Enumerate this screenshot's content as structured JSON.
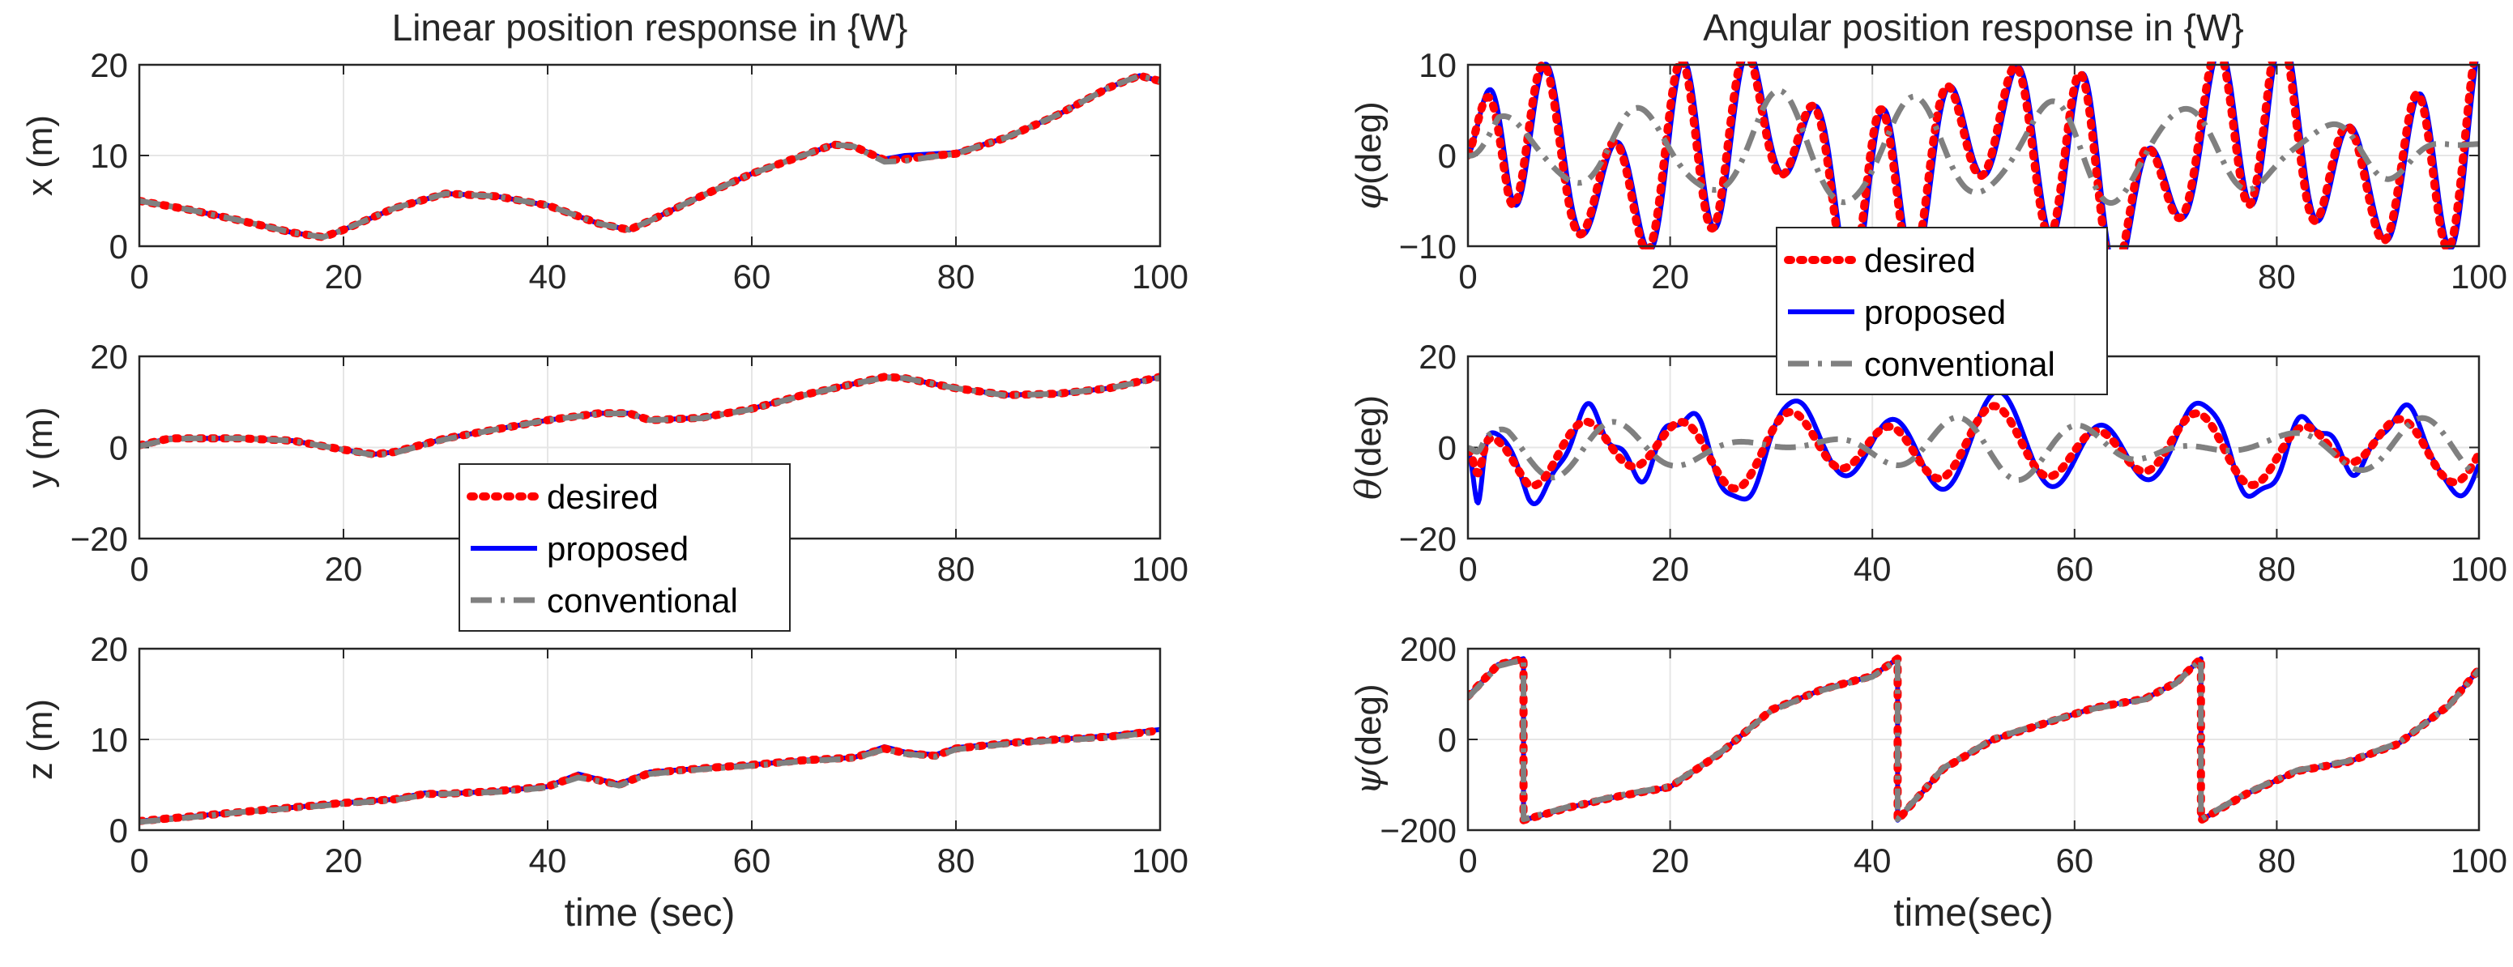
{
  "chart_data": [
    {
      "type": "line",
      "id": "x-plot",
      "title": "Linear position response in {W}",
      "ylabel": "x (m)",
      "xlabel": "",
      "xlim": [
        0,
        100
      ],
      "ylim": [
        0,
        20
      ],
      "xticks": [
        "0",
        "20",
        "40",
        "60",
        "80",
        "100"
      ],
      "yticks": [
        "0",
        "10",
        "20"
      ],
      "x": [
        0,
        5,
        10,
        15,
        18,
        20,
        25,
        30,
        35,
        40,
        45,
        48,
        50,
        55,
        60,
        65,
        68,
        70,
        73,
        75,
        78,
        80,
        85,
        90,
        95,
        98,
        100
      ],
      "series": [
        {
          "name": "desired",
          "values": [
            5,
            4,
            2.8,
            1.5,
            1,
            1.8,
            4.2,
            5.8,
            5.5,
            4.5,
            2.5,
            1.8,
            2.8,
            5.5,
            8,
            10,
            11.2,
            11,
            9.5,
            9.6,
            10,
            10.2,
            12,
            14.5,
            17.5,
            18.8,
            18.2
          ]
        },
        {
          "name": "proposed",
          "values": [
            5,
            4,
            2.8,
            1.5,
            1,
            1.8,
            4.2,
            5.8,
            5.5,
            4.5,
            2.5,
            1.8,
            2.8,
            5.5,
            8,
            10,
            11.2,
            11,
            9.6,
            10,
            10.2,
            10.3,
            12,
            14.5,
            17.5,
            18.8,
            18.2
          ]
        },
        {
          "name": "conventional",
          "values": [
            5,
            4,
            2.8,
            1.5,
            1,
            1.8,
            4.2,
            5.8,
            5.5,
            4.5,
            2.5,
            1.8,
            2.8,
            5.5,
            8,
            10,
            11.2,
            11,
            9.3,
            9.4,
            9.9,
            10.2,
            12,
            14.5,
            17.5,
            18.8,
            18.2
          ]
        }
      ]
    },
    {
      "type": "line",
      "id": "y-plot",
      "ylabel": "y (m)",
      "xlabel": "",
      "xlim": [
        0,
        100
      ],
      "ylim": [
        -20,
        20
      ],
      "xticks": [
        "0",
        "20",
        "40",
        "60",
        "80",
        "100"
      ],
      "yticks": [
        "−20",
        "0",
        "20"
      ],
      "x": [
        0,
        3,
        5,
        10,
        15,
        20,
        23,
        25,
        30,
        35,
        40,
        45,
        48,
        50,
        55,
        60,
        65,
        70,
        73,
        75,
        80,
        85,
        90,
        95,
        100
      ],
      "series": [
        {
          "name": "desired",
          "values": [
            0.5,
            2,
            2,
            2,
            1.5,
            -0.5,
            -1.5,
            -1,
            2,
            4,
            6,
            7.5,
            7.5,
            6,
            6.5,
            8.5,
            11.5,
            14,
            15.5,
            15.2,
            13,
            11.5,
            11.8,
            13,
            15.5
          ]
        },
        {
          "name": "proposed",
          "values": [
            0.5,
            2,
            2,
            2,
            1.5,
            -0.5,
            -1.5,
            -1,
            2,
            4,
            6,
            7.5,
            7.5,
            6,
            6.5,
            8.5,
            11.5,
            14,
            15.5,
            15.2,
            13,
            11.5,
            11.8,
            13,
            15.5
          ]
        },
        {
          "name": "conventional",
          "values": [
            0.3,
            1.8,
            2,
            2,
            1.5,
            -0.5,
            -1.7,
            -1.2,
            1.8,
            4,
            6,
            7.4,
            7.5,
            6,
            6.4,
            8.4,
            11.4,
            14,
            15.3,
            15.2,
            13,
            11.4,
            11.8,
            13,
            15.3
          ]
        }
      ]
    },
    {
      "type": "line",
      "id": "z-plot",
      "ylabel": "z (m)",
      "xlabel": "time (sec)",
      "xlim": [
        0,
        100
      ],
      "ylim": [
        0,
        20
      ],
      "xticks": [
        "0",
        "20",
        "40",
        "60",
        "80",
        "100"
      ],
      "yticks": [
        "0",
        "10",
        "20"
      ],
      "x": [
        0,
        5,
        10,
        15,
        20,
        25,
        28,
        30,
        35,
        40,
        43,
        45,
        47,
        50,
        55,
        60,
        65,
        70,
        73,
        75,
        78,
        80,
        85,
        90,
        95,
        100
      ],
      "series": [
        {
          "name": "desired",
          "values": [
            1,
            1.5,
            2,
            2.5,
            3,
            3.4,
            4,
            4,
            4.3,
            4.8,
            6,
            5.5,
            5,
            6.3,
            6.8,
            7.2,
            7.7,
            8,
            9,
            8.5,
            8.2,
            9,
            9.6,
            10,
            10.3,
            11
          ]
        },
        {
          "name": "proposed",
          "values": [
            1,
            1.5,
            2,
            2.5,
            3,
            3.4,
            4.1,
            4,
            4.3,
            4.8,
            6.2,
            5.6,
            5.1,
            6.4,
            6.8,
            7.2,
            7.7,
            8,
            9.2,
            8.6,
            8.3,
            9.1,
            9.6,
            10,
            10.4,
            11.1
          ]
        },
        {
          "name": "conventional",
          "values": [
            0.9,
            1.4,
            2,
            2.4,
            2.9,
            3.3,
            3.9,
            4,
            4.2,
            4.7,
            5.8,
            5.4,
            4.9,
            6.2,
            6.7,
            7.1,
            7.6,
            7.9,
            8.9,
            8.4,
            8.1,
            8.9,
            9.5,
            9.9,
            10.2,
            10.9
          ]
        }
      ]
    },
    {
      "type": "line",
      "id": "phi-plot",
      "title": "Angular position response in {W}",
      "ylabel_symbol": "φ",
      "ylabel": "(deg)",
      "xlabel": "",
      "xlim": [
        0,
        100
      ],
      "ylim": [
        -10,
        10
      ],
      "xticks": [
        "0",
        "20",
        "40",
        "60",
        "80",
        "100"
      ],
      "yticks": [
        "−10",
        "0",
        "10"
      ],
      "generator": {
        "x_start": 0,
        "x_end": 100,
        "samples": 800,
        "desired": [
          [
            0.95,
            8.0,
            0.5,
            1.6
          ],
          [
            0.25,
            4.5,
            1.0,
            0.9
          ]
        ],
        "desired_ramp": 4,
        "proposed_gain": 1.0,
        "proposed_lag": 0.25,
        "conventional": [
          [
            0.5,
            2.2,
            11.0,
            0.9
          ],
          [
            0.45,
            3.5,
            0.6,
            2.1
          ]
        ],
        "conventional_ramp": 3
      },
      "series": [
        {
          "name": "desired"
        },
        {
          "name": "proposed"
        },
        {
          "name": "conventional"
        }
      ]
    },
    {
      "type": "line",
      "id": "theta-plot",
      "ylabel_symbol": "θ",
      "ylabel": "(deg)",
      "xlabel": "",
      "xlim": [
        0,
        100
      ],
      "ylim": [
        -20,
        20
      ],
      "xticks": [
        "0",
        "20",
        "40",
        "60",
        "80",
        "100"
      ],
      "yticks": [
        "−20",
        "0",
        "20"
      ],
      "generator": {
        "x_start": 0,
        "x_end": 100,
        "samples": 800,
        "desired": [
          [
            0.62,
            5.0,
            0.8,
            0.0
          ],
          [
            0.35,
            2.5,
            2.1,
            1.1
          ]
        ],
        "desired_ramp": 6,
        "proposed_gain": 1.35,
        "proposed_lag": 0.4,
        "proposed_extra": [
          [
            1.7,
            3.5,
            0.3,
            0.5
          ]
        ],
        "conventional": [
          [
            0.55,
            3.5,
            0.0,
            0.7
          ],
          [
            0.4,
            2.0,
            1.5,
            1.2
          ]
        ],
        "conventional_ramp": 4,
        "initial_spike": {
          "at": 1.0,
          "desired": -7,
          "proposed": -14,
          "conventional": -2
        }
      },
      "series": [
        {
          "name": "desired"
        },
        {
          "name": "proposed"
        },
        {
          "name": "conventional"
        }
      ]
    },
    {
      "type": "line",
      "id": "psi-plot",
      "ylabel_symbol": "ψ",
      "ylabel": "(deg)",
      "xlabel": "time(sec)",
      "xlim": [
        0,
        100
      ],
      "ylim": [
        -200,
        200
      ],
      "xticks": [
        "0",
        "20",
        "40",
        "60",
        "80",
        "100"
      ],
      "yticks": [
        "−200",
        "0",
        "200"
      ],
      "x": [
        0,
        3,
        5.5,
        5.5,
        10,
        15,
        20,
        25,
        30,
        35,
        40,
        42.5,
        42.5,
        47,
        52,
        57,
        62,
        67,
        70,
        72.5,
        72.5,
        77,
        82,
        87,
        92,
        97,
        100
      ],
      "series": [
        {
          "name": "desired",
          "values": [
            95,
            165,
            178,
            -178,
            -150,
            -125,
            -105,
            -30,
            65,
            110,
            140,
            178,
            -178,
            -65,
            0,
            35,
            70,
            90,
            125,
            178,
            -178,
            -120,
            -70,
            -50,
            -10,
            75,
            155
          ]
        },
        {
          "name": "proposed",
          "values": [
            95,
            165,
            178,
            -178,
            -150,
            -125,
            -105,
            -30,
            65,
            110,
            140,
            178,
            -178,
            -65,
            0,
            35,
            70,
            90,
            125,
            178,
            -178,
            -120,
            -70,
            -50,
            -10,
            75,
            155
          ]
        },
        {
          "name": "conventional",
          "values": [
            92,
            162,
            176,
            -176,
            -148,
            -123,
            -103,
            -28,
            63,
            108,
            138,
            176,
            -176,
            -63,
            2,
            37,
            68,
            88,
            123,
            176,
            -176,
            -118,
            -68,
            -48,
            -8,
            73,
            153
          ]
        }
      ]
    }
  ],
  "legend": {
    "items": [
      {
        "label": "desired",
        "color": "#ff0000",
        "style": "dotted"
      },
      {
        "label": "proposed",
        "color": "#0000ff",
        "style": "solid"
      },
      {
        "label": "conventional",
        "color": "#808080",
        "style": "dashdot"
      }
    ]
  },
  "colors": {
    "desired": "#ff0000",
    "proposed": "#0000ff",
    "conventional": "#808080",
    "grid": "#e6e6e6",
    "axes": "#262626"
  }
}
